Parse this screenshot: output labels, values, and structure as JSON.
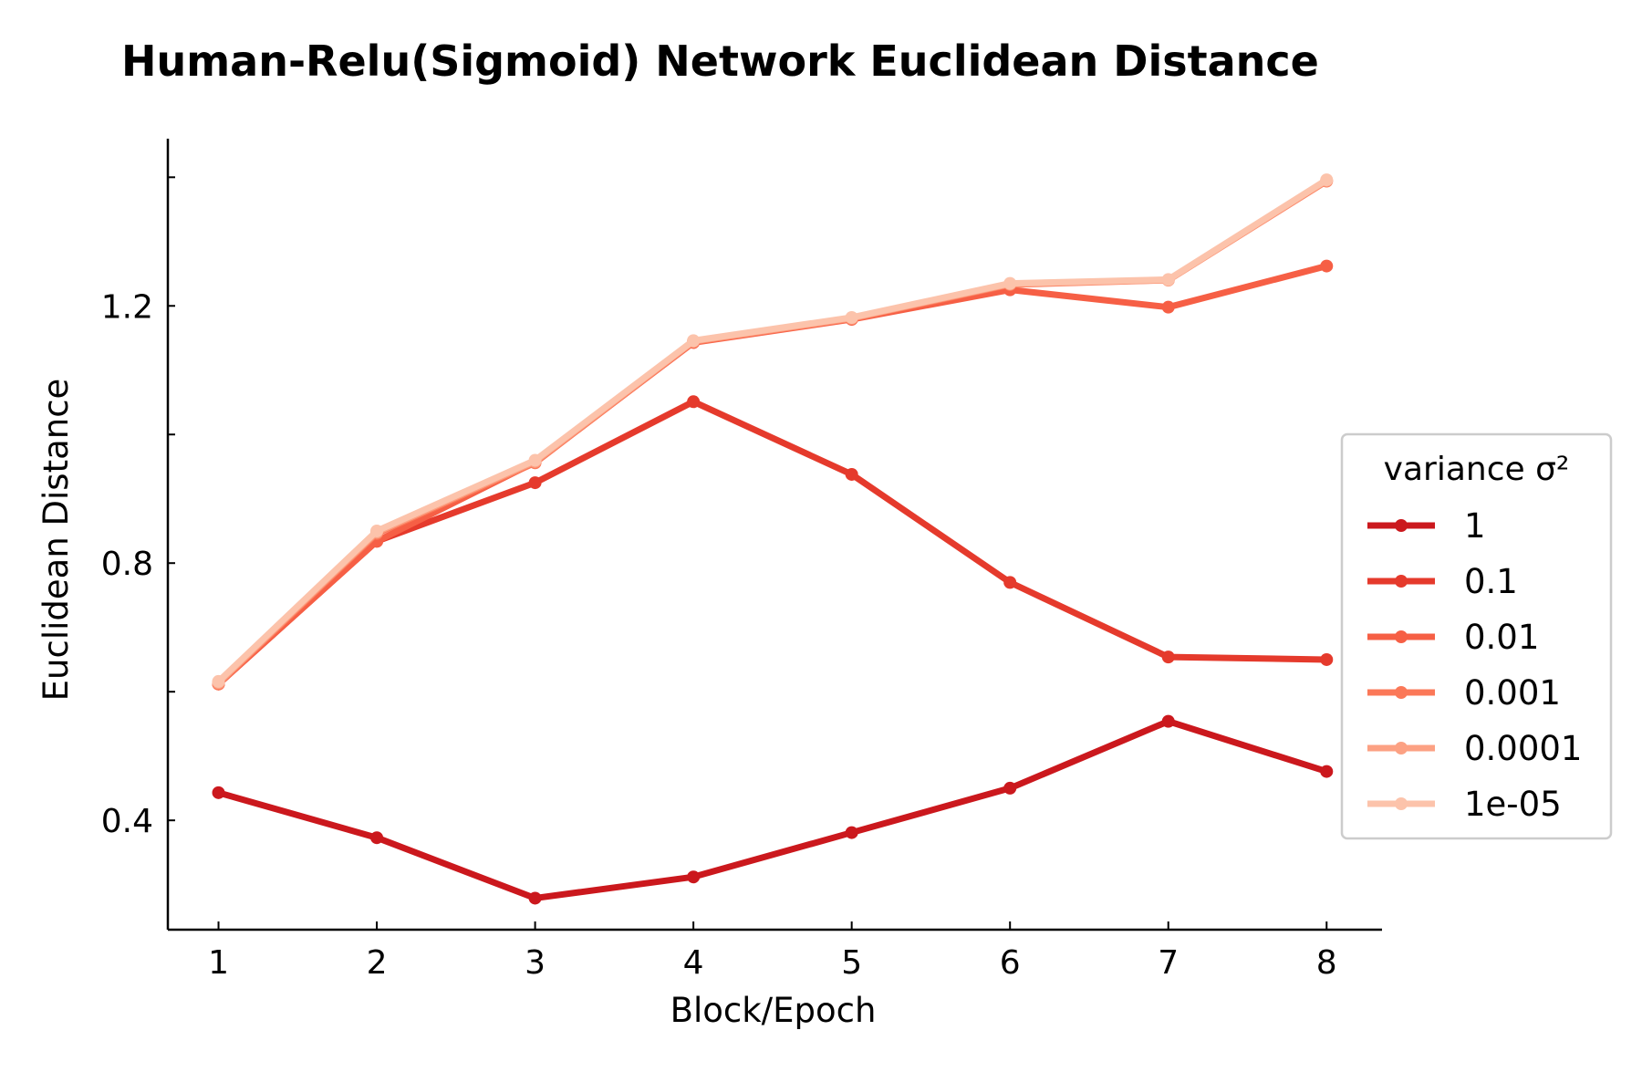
{
  "chart_data": {
    "type": "line",
    "title": "Human-Relu(Sigmoid) Network Euclidean Distance",
    "xlabel": "Block/Epoch",
    "ylabel": "Euclidean Distance",
    "x": [
      1,
      2,
      3,
      4,
      5,
      6,
      7,
      8
    ],
    "xlim": [
      0.68,
      8.35
    ],
    "ylim": [
      0.23,
      1.46
    ],
    "yticks_labeled": [
      "0.4",
      "0.8",
      "1.2"
    ],
    "yticks_all": [
      0.4,
      0.6,
      0.8,
      1.0,
      1.2,
      1.4
    ],
    "grid": false,
    "legend": {
      "title": "variance σ²",
      "position": "right"
    },
    "series": [
      {
        "name": "1",
        "color": "#cb181d",
        "values": [
          0.443,
          0.373,
          0.279,
          0.312,
          0.381,
          0.45,
          0.554,
          0.476
        ]
      },
      {
        "name": "0.1",
        "color": "#e53a2c",
        "values": [
          0.612,
          0.834,
          0.925,
          1.051,
          0.938,
          0.77,
          0.654,
          0.65
        ]
      },
      {
        "name": "0.01",
        "color": "#f65f45",
        "values": [
          0.612,
          0.834,
          0.957,
          1.143,
          1.179,
          1.225,
          1.198,
          1.262
        ]
      },
      {
        "name": "0.001",
        "color": "#fb7858",
        "values": [
          0.612,
          0.846,
          0.956,
          1.144,
          1.18,
          1.233,
          1.24,
          1.394
        ]
      },
      {
        "name": "0.0001",
        "color": "#fca183",
        "values": [
          0.614,
          0.848,
          0.958,
          1.145,
          1.181,
          1.234,
          1.24,
          1.395
        ]
      },
      {
        "name": "1e-05",
        "color": "#fcc3ab",
        "values": [
          0.616,
          0.85,
          0.96,
          1.146,
          1.182,
          1.235,
          1.241,
          1.396
        ]
      }
    ]
  }
}
